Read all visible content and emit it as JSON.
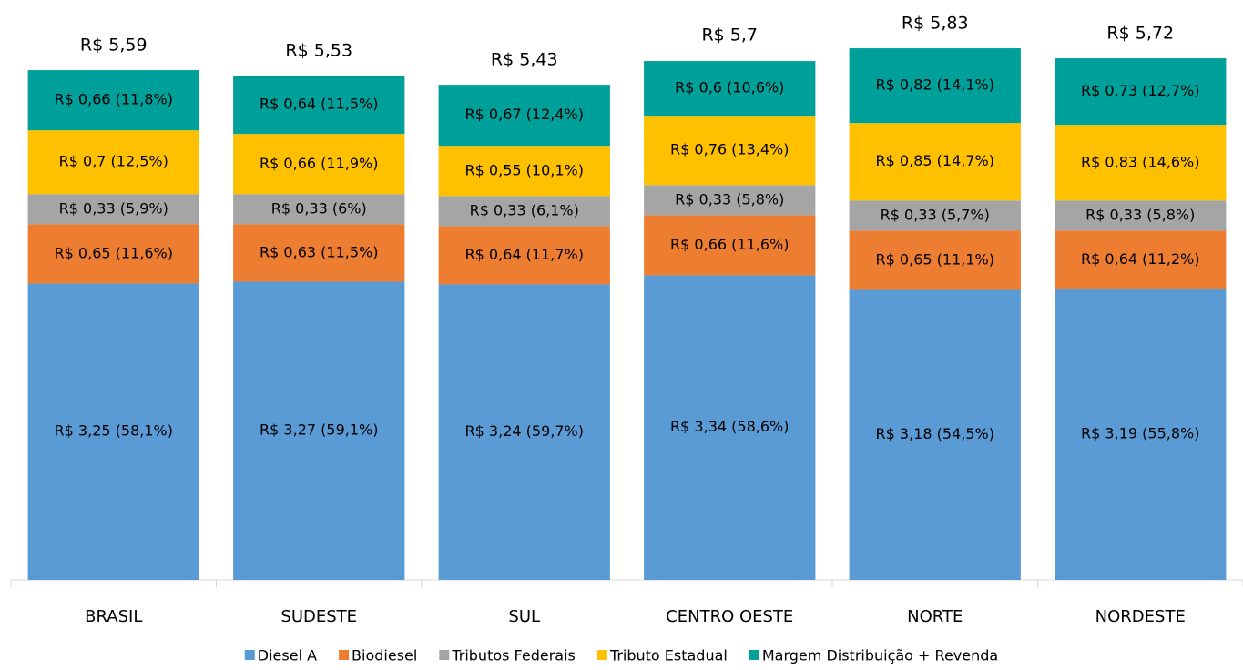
{
  "chart_data": {
    "type": "stacked_bar",
    "categories": [
      "BRASIL",
      "SUDESTE",
      "SUL",
      "CENTRO OESTE",
      "NORTE",
      "NORDESTE"
    ],
    "series": [
      {
        "name": "Diesel A",
        "color": "#5b9bd5",
        "values": [
          3.25,
          3.27,
          3.24,
          3.34,
          3.18,
          3.19
        ],
        "value_labels": [
          "R$ 3,25 (58,1%)",
          "R$ 3,27 (59,1%)",
          "R$ 3,24 (59,7%)",
          "R$ 3,34 (58,6%)",
          "R$ 3,18 (54,5%)",
          "R$ 3,19 (55,8%)"
        ]
      },
      {
        "name": "Biodiesel",
        "color": "#ed7d31",
        "values": [
          0.65,
          0.63,
          0.64,
          0.66,
          0.65,
          0.64
        ],
        "value_labels": [
          "R$ 0,65 (11,6%)",
          "R$ 0,63 (11,5%)",
          "R$ 0,64 (11,7%)",
          "R$ 0,66 (11,6%)",
          "R$ 0,65 (11,1%)",
          "R$ 0,64 (11,2%)"
        ]
      },
      {
        "name": "Tributos Federais",
        "color": "#a5a5a5",
        "values": [
          0.33,
          0.33,
          0.33,
          0.33,
          0.33,
          0.33
        ],
        "value_labels": [
          "R$ 0,33 (5,9%)",
          "R$ 0,33 (6%)",
          "R$ 0,33 (6,1%)",
          "R$ 0,33 (5,8%)",
          "R$ 0,33 (5,7%)",
          "R$ 0,33 (5,8%)"
        ]
      },
      {
        "name": "Tributo Estadual",
        "color": "#ffc000",
        "values": [
          0.7,
          0.66,
          0.55,
          0.76,
          0.85,
          0.83
        ],
        "value_labels": [
          "R$ 0,7 (12,5%)",
          "R$ 0,66 (11,9%)",
          "R$ 0,55 (10,1%)",
          "R$ 0,76 (13,4%)",
          "R$ 0,85 (14,7%)",
          "R$ 0,83 (14,6%)"
        ]
      },
      {
        "name": "Margem Distribuição + Revenda",
        "color": "#00a09a",
        "values": [
          0.66,
          0.64,
          0.67,
          0.6,
          0.82,
          0.73
        ],
        "value_labels": [
          "R$ 0,66 (11,8%)",
          "R$ 0,64 (11,5%)",
          "R$ 0,67 (12,4%)",
          "R$ 0,6 (10,6%)",
          "R$ 0,82 (14,1%)",
          "R$ 0,73 (12,7%)"
        ]
      }
    ],
    "totals": [
      5.59,
      5.53,
      5.43,
      5.7,
      5.83,
      5.72
    ],
    "total_labels": [
      "R$ 5,59",
      "R$ 5,53",
      "R$ 5,43",
      "R$ 5,7",
      "R$ 5,83",
      "R$ 5,72"
    ],
    "ylim": [
      0,
      6.1
    ],
    "legend": "bottom"
  }
}
